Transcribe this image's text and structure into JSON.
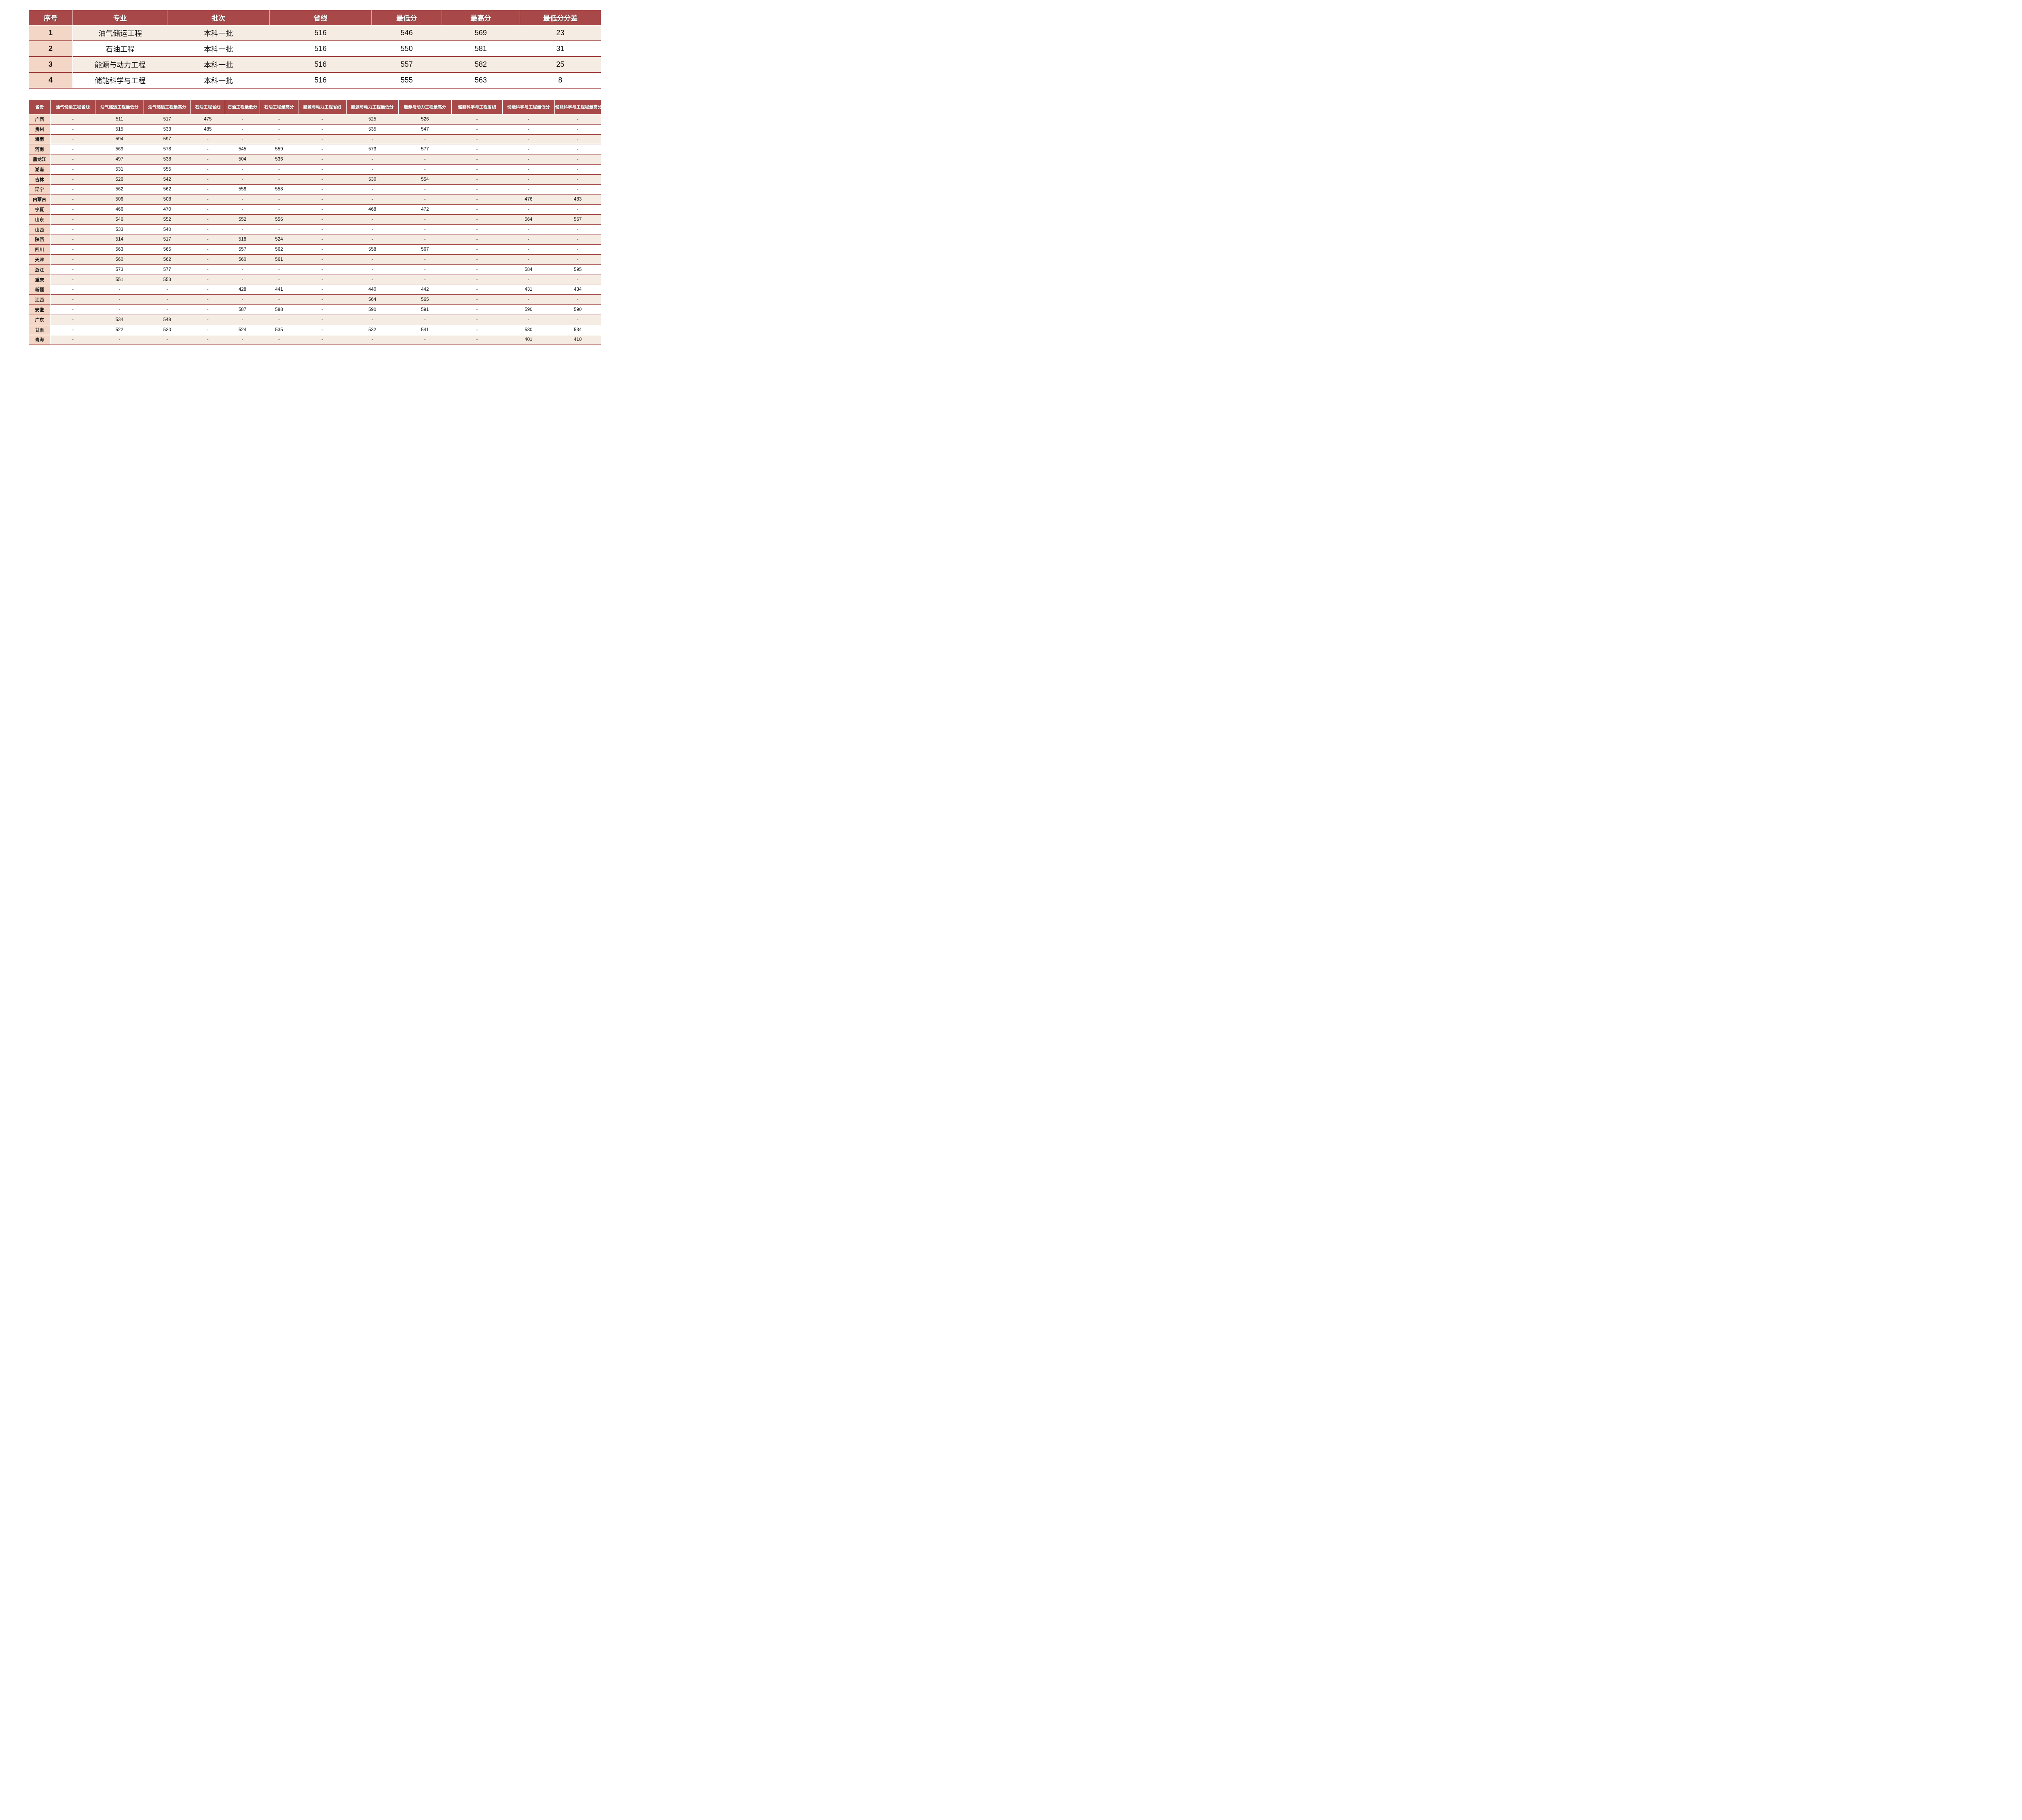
{
  "colors": {
    "header_bg": "#A84848",
    "border_red": "#9B3938",
    "row_cream": "#F5ECE4",
    "row_white": "#FFFFFF",
    "first_col_bg": "#F3D6C5",
    "header_text": "#FFFFFF",
    "body_text": "#111111"
  },
  "majors_table": {
    "headers": [
      "序号",
      "专业",
      "批次",
      "省线",
      "最低分",
      "最高分",
      "最低分分差"
    ],
    "rows": [
      [
        "1",
        "油气储运工程",
        "本科一批",
        "516",
        "546",
        "569",
        "23"
      ],
      [
        "2",
        "石油工程",
        "本科一批",
        "516",
        "550",
        "581",
        "31"
      ],
      [
        "3",
        "能源与动力工程",
        "本科一批",
        "516",
        "557",
        "582",
        "25"
      ],
      [
        "4",
        "储能科学与工程",
        "本科一批",
        "516",
        "555",
        "563",
        "8"
      ]
    ]
  },
  "provinces_table": {
    "headers": [
      "省份",
      "油气储运工程省线",
      "油气储运工程最低分",
      "油气储运工程最高分",
      "石油工程省线",
      "石油工程最低分",
      "石油工程最高分",
      "能源与动力工程省线",
      "能源与动力工程最低分",
      "能源与动力工程最高分",
      "储能科学与工程省线",
      "储能科学与工程最低分",
      "储能科学与工程程最高分"
    ],
    "rows": [
      [
        "广西",
        "-",
        "511",
        "517",
        "475",
        "-",
        "-",
        "-",
        "525",
        "526",
        "-",
        "-",
        "-"
      ],
      [
        "贵州",
        "-",
        "515",
        "533",
        "485",
        "-",
        "-",
        "-",
        "535",
        "547",
        "-",
        "-",
        "-"
      ],
      [
        "海南",
        "-",
        "594",
        "597",
        "-",
        "-",
        "-",
        "-",
        "-",
        "-",
        "-",
        "-",
        "-"
      ],
      [
        "河南",
        "-",
        "569",
        "578",
        "-",
        "545",
        "559",
        "-",
        "573",
        "577",
        "-",
        "-",
        "-"
      ],
      [
        "黑龙江",
        "-",
        "497",
        "538",
        "-",
        "504",
        "536",
        "-",
        "-",
        "-",
        "-",
        "-",
        "-"
      ],
      [
        "湖南",
        "-",
        "531",
        "555",
        "-",
        "-",
        "-",
        "-",
        "-",
        "-",
        "-",
        "-",
        "-"
      ],
      [
        "吉林",
        "-",
        "526",
        "542",
        "-",
        "-",
        "-",
        "-",
        "530",
        "554",
        "-",
        "-",
        "-"
      ],
      [
        "辽宁",
        "-",
        "562",
        "562",
        "-",
        "558",
        "558",
        "-",
        "-",
        "-",
        "-",
        "-",
        "-"
      ],
      [
        "内蒙古",
        "-",
        "506",
        "508",
        "-",
        "-",
        "-",
        "-",
        "-",
        "-",
        "-",
        "476",
        "483"
      ],
      [
        "宁夏",
        "-",
        "466",
        "470",
        "-",
        "-",
        "-",
        "-",
        "468",
        "472",
        "-",
        "-",
        "-"
      ],
      [
        "山东",
        "-",
        "546",
        "552",
        "-",
        "552",
        "556",
        "-",
        "-",
        "-",
        "-",
        "564",
        "567"
      ],
      [
        "山西",
        "-",
        "533",
        "540",
        "-",
        "-",
        "-",
        "-",
        "-",
        "-",
        "-",
        "-",
        "-"
      ],
      [
        "陕西",
        "-",
        "514",
        "517",
        "-",
        "518",
        "524",
        "-",
        "-",
        "-",
        "-",
        "-",
        "-"
      ],
      [
        "四川",
        "-",
        "563",
        "565",
        "-",
        "557",
        "562",
        "-",
        "558",
        "567",
        "-",
        "-",
        "-"
      ],
      [
        "天津",
        "-",
        "560",
        "562",
        "-",
        "560",
        "561",
        "-",
        "-",
        "-",
        "-",
        "-",
        "-"
      ],
      [
        "浙江",
        "-",
        "573",
        "577",
        "-",
        "-",
        "-",
        "-",
        "-",
        "-",
        "-",
        "584",
        "595"
      ],
      [
        "重庆",
        "-",
        "551",
        "553",
        "-",
        "-",
        "-",
        "-",
        "-",
        "-",
        "-",
        "-",
        "-"
      ],
      [
        "新疆",
        "-",
        "-",
        "-",
        "-",
        "428",
        "441",
        "-",
        "440",
        "442",
        "-",
        "431",
        "434"
      ],
      [
        "江西",
        "-",
        "-",
        "-",
        "-",
        "-",
        "-",
        "-",
        "564",
        "565",
        "-",
        "-",
        "-"
      ],
      [
        "安徽",
        "-",
        "-",
        "-",
        "-",
        "587",
        "588",
        "-",
        "590",
        "591",
        "-",
        "590",
        "590"
      ],
      [
        "广东",
        "-",
        "534",
        "548",
        "-",
        "-",
        "-",
        "-",
        "-",
        "-",
        "-",
        "-",
        "-"
      ],
      [
        "甘肃",
        "-",
        "522",
        "530",
        "-",
        "524",
        "535",
        "-",
        "532",
        "541",
        "-",
        "530",
        "534"
      ],
      [
        "青海",
        "-",
        "-",
        "-",
        "-",
        "-",
        "-",
        "-",
        "-",
        "-",
        "-",
        "401",
        "410"
      ]
    ]
  }
}
